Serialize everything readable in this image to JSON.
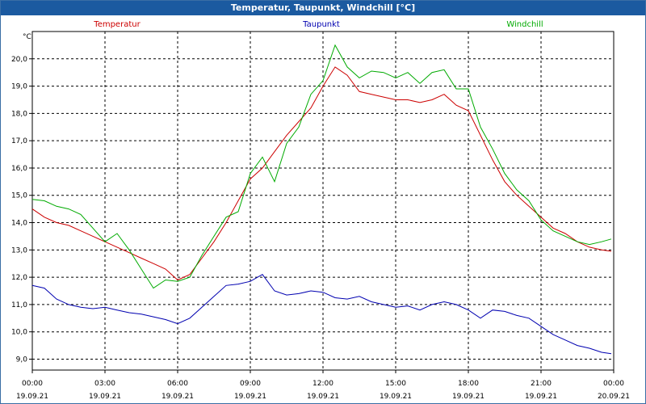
{
  "window": {
    "title": "Temperatur, Taupunkt, Windchill [°C]"
  },
  "colors": {
    "titlebar": "#1b5aa0",
    "temperature": "#cc0000",
    "dewpoint": "#0000b0",
    "windchill": "#00aa00",
    "grid": "#000000"
  },
  "chart_data": {
    "type": "line",
    "title": "Temperatur, Taupunkt, Windchill [°C]",
    "ylabel": "°C",
    "xlabel": "",
    "ylim": [
      8.6,
      21.0
    ],
    "xlim": [
      0,
      24
    ],
    "grid": true,
    "legend": "top",
    "yticks": [
      9.0,
      10.0,
      11.0,
      12.0,
      13.0,
      14.0,
      15.0,
      16.0,
      17.0,
      18.0,
      19.0,
      20.0
    ],
    "ytick_labels": [
      "9,0",
      "10,0",
      "11,0",
      "12,0",
      "13,0",
      "14,0",
      "15,0",
      "16,0",
      "17,0",
      "18,0",
      "19,0",
      "20,0"
    ],
    "xticks": [
      {
        "x": 0,
        "time": "00:00",
        "date": "19.09.21"
      },
      {
        "x": 3,
        "time": "03:00",
        "date": "19.09.21"
      },
      {
        "x": 6,
        "time": "06:00",
        "date": "19.09.21"
      },
      {
        "x": 9,
        "time": "09:00",
        "date": "19.09.21"
      },
      {
        "x": 12,
        "time": "12:00",
        "date": "19.09.21"
      },
      {
        "x": 15,
        "time": "15:00",
        "date": "19.09.21"
      },
      {
        "x": 18,
        "time": "18:00",
        "date": "19.09.21"
      },
      {
        "x": 21,
        "time": "21:00",
        "date": "19.09.21"
      },
      {
        "x": 24,
        "time": "00:00",
        "date": "20.09.21"
      }
    ],
    "series": [
      {
        "name": "Temperatur",
        "color": "#cc0000",
        "x": [
          0,
          0.5,
          1,
          1.5,
          2,
          2.5,
          3,
          3.5,
          4,
          4.5,
          5,
          5.5,
          6,
          6.5,
          7,
          7.5,
          8,
          8.5,
          9,
          9.5,
          10,
          10.5,
          11,
          11.5,
          12,
          12.5,
          13,
          13.5,
          14,
          14.5,
          15,
          15.5,
          16,
          16.5,
          17,
          17.5,
          18,
          18.5,
          19,
          19.5,
          20,
          20.5,
          21,
          21.5,
          22,
          22.5,
          23,
          23.5,
          23.9
        ],
        "values": [
          14.5,
          14.2,
          14.0,
          13.9,
          13.7,
          13.5,
          13.3,
          13.1,
          12.9,
          12.7,
          12.5,
          12.3,
          11.9,
          12.1,
          12.7,
          13.3,
          14.0,
          14.8,
          15.6,
          16.0,
          16.6,
          17.2,
          17.7,
          18.2,
          19.0,
          19.7,
          19.4,
          18.8,
          18.7,
          18.6,
          18.5,
          18.5,
          18.4,
          18.5,
          18.7,
          18.3,
          18.1,
          17.2,
          16.3,
          15.5,
          15.0,
          14.6,
          14.2,
          13.8,
          13.6,
          13.3,
          13.1,
          13.0,
          12.95
        ]
      },
      {
        "name": "Taupunkt",
        "color": "#0000b0",
        "x": [
          0,
          0.5,
          1,
          1.5,
          2,
          2.5,
          3,
          3.5,
          4,
          4.5,
          5,
          5.5,
          6,
          6.5,
          7,
          7.5,
          8,
          8.5,
          9,
          9.5,
          10,
          10.5,
          11,
          11.5,
          12,
          12.5,
          13,
          13.5,
          14,
          14.5,
          15,
          15.5,
          16,
          16.5,
          17,
          17.5,
          18,
          18.5,
          19,
          19.5,
          20,
          20.5,
          21,
          21.5,
          22,
          22.5,
          23,
          23.5,
          23.9
        ],
        "values": [
          11.7,
          11.6,
          11.2,
          11.0,
          10.9,
          10.85,
          10.9,
          10.8,
          10.7,
          10.65,
          10.55,
          10.45,
          10.3,
          10.5,
          10.9,
          11.3,
          11.7,
          11.75,
          11.85,
          12.1,
          11.5,
          11.35,
          11.4,
          11.5,
          11.45,
          11.25,
          11.2,
          11.3,
          11.1,
          11.0,
          10.9,
          10.95,
          10.8,
          11.0,
          11.1,
          11.0,
          10.8,
          10.5,
          10.8,
          10.75,
          10.6,
          10.5,
          10.2,
          9.9,
          9.7,
          9.5,
          9.4,
          9.25,
          9.2
        ]
      },
      {
        "name": "Windchill",
        "color": "#00aa00",
        "x": [
          0,
          0.5,
          1,
          1.5,
          2,
          2.5,
          3,
          3.5,
          4,
          4.5,
          5,
          5.5,
          6,
          6.5,
          7,
          7.5,
          8,
          8.5,
          9,
          9.5,
          10,
          10.5,
          11,
          11.5,
          12,
          12.5,
          13,
          13.5,
          14,
          14.5,
          15,
          15.5,
          16,
          16.5,
          17,
          17.5,
          18,
          18.5,
          19,
          19.5,
          20,
          20.5,
          21,
          21.5,
          22,
          22.5,
          23,
          23.5,
          23.9
        ],
        "values": [
          14.85,
          14.8,
          14.6,
          14.5,
          14.3,
          13.8,
          13.3,
          13.6,
          13.0,
          12.3,
          11.6,
          11.9,
          11.85,
          12.0,
          12.8,
          13.5,
          14.2,
          14.4,
          15.8,
          16.4,
          15.5,
          16.9,
          17.5,
          18.7,
          19.2,
          20.5,
          19.7,
          19.3,
          19.55,
          19.5,
          19.3,
          19.5,
          19.1,
          19.5,
          19.6,
          18.9,
          18.9,
          17.5,
          16.7,
          15.8,
          15.2,
          14.8,
          14.1,
          13.7,
          13.5,
          13.3,
          13.2,
          13.3,
          13.4
        ]
      }
    ]
  }
}
